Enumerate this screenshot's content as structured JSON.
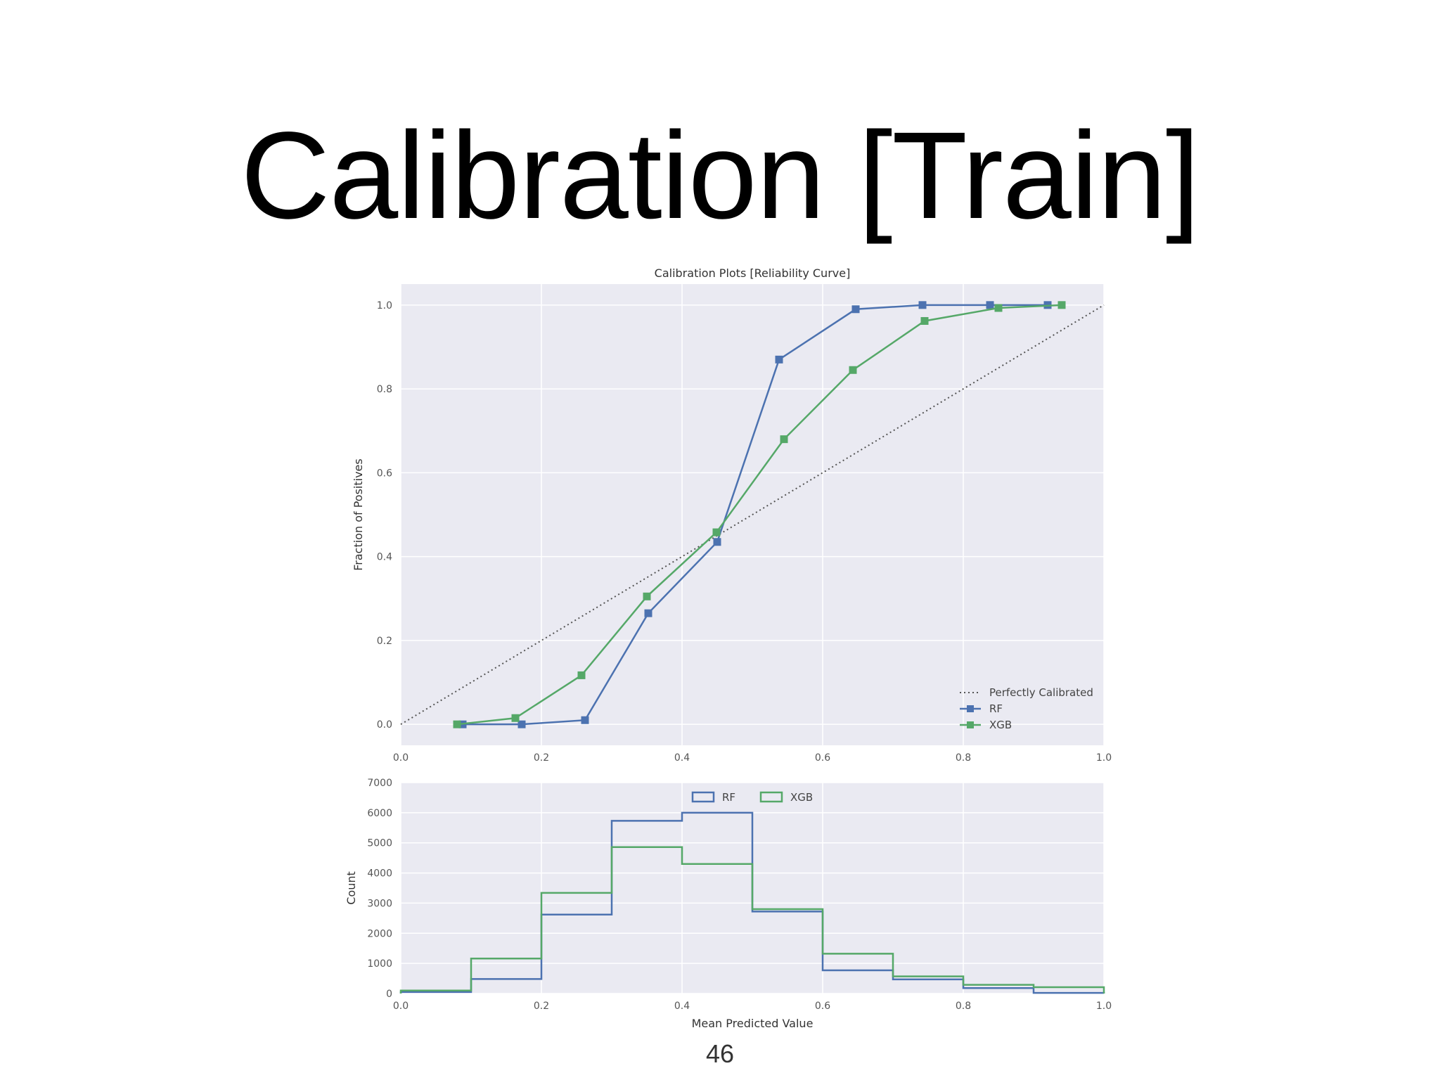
{
  "slide": {
    "title": "Calibration [Train]",
    "page_number": "46"
  },
  "chart_data": [
    {
      "type": "line",
      "title": "Calibration Plots [Reliability Curve]",
      "xlabel": "",
      "ylabel": "Fraction of Positives",
      "xlim": [
        0.0,
        1.0
      ],
      "ylim": [
        -0.05,
        1.05
      ],
      "xticks": [
        "0.0",
        "0.2",
        "0.4",
        "0.6",
        "0.8",
        "1.0"
      ],
      "yticks": [
        "0.0",
        "0.2",
        "0.4",
        "0.6",
        "0.8",
        "1.0"
      ],
      "grid": true,
      "legend_position": "lower-right",
      "series": [
        {
          "name": "Perfectly Calibrated",
          "style": "dotted",
          "color": "#555555",
          "x": [
            0.0,
            1.0
          ],
          "y": [
            0.0,
            1.0
          ]
        },
        {
          "name": "RF",
          "style": "line-square",
          "color": "#4c72b0",
          "x": [
            0.088,
            0.172,
            0.262,
            0.352,
            0.45,
            0.538,
            0.647,
            0.742,
            0.838,
            0.92
          ],
          "y": [
            0.0,
            0.0,
            0.01,
            0.265,
            0.435,
            0.87,
            0.99,
            1.0,
            1.0,
            1.0
          ]
        },
        {
          "name": "XGB",
          "style": "line-square",
          "color": "#55a868",
          "x": [
            0.08,
            0.163,
            0.257,
            0.35,
            0.449,
            0.545,
            0.643,
            0.745,
            0.85,
            0.94
          ],
          "y": [
            0.0,
            0.015,
            0.117,
            0.305,
            0.458,
            0.68,
            0.845,
            0.962,
            0.993,
            1.0
          ]
        }
      ]
    },
    {
      "type": "histogram",
      "title": "",
      "xlabel": "Mean Predicted Value",
      "ylabel": "Count",
      "xlim": [
        0.0,
        1.0
      ],
      "ylim": [
        0,
        7000
      ],
      "xticks": [
        "0.0",
        "0.2",
        "0.4",
        "0.6",
        "0.8",
        "1.0"
      ],
      "yticks": [
        "0",
        "1000",
        "2000",
        "3000",
        "4000",
        "5000",
        "6000",
        "7000"
      ],
      "grid": true,
      "legend_position": "top-center",
      "bin_edges": [
        0.0,
        0.1,
        0.2,
        0.3,
        0.4,
        0.5,
        0.6,
        0.7,
        0.8,
        0.9,
        1.0
      ],
      "series": [
        {
          "name": "RF",
          "color": "#4c72b0",
          "counts": [
            50,
            480,
            2620,
            5730,
            6000,
            2720,
            770,
            470,
            180,
            20
          ]
        },
        {
          "name": "XGB",
          "color": "#55a868",
          "counts": [
            100,
            1160,
            3340,
            4860,
            4300,
            2800,
            1320,
            570,
            290,
            210
          ]
        }
      ]
    }
  ]
}
